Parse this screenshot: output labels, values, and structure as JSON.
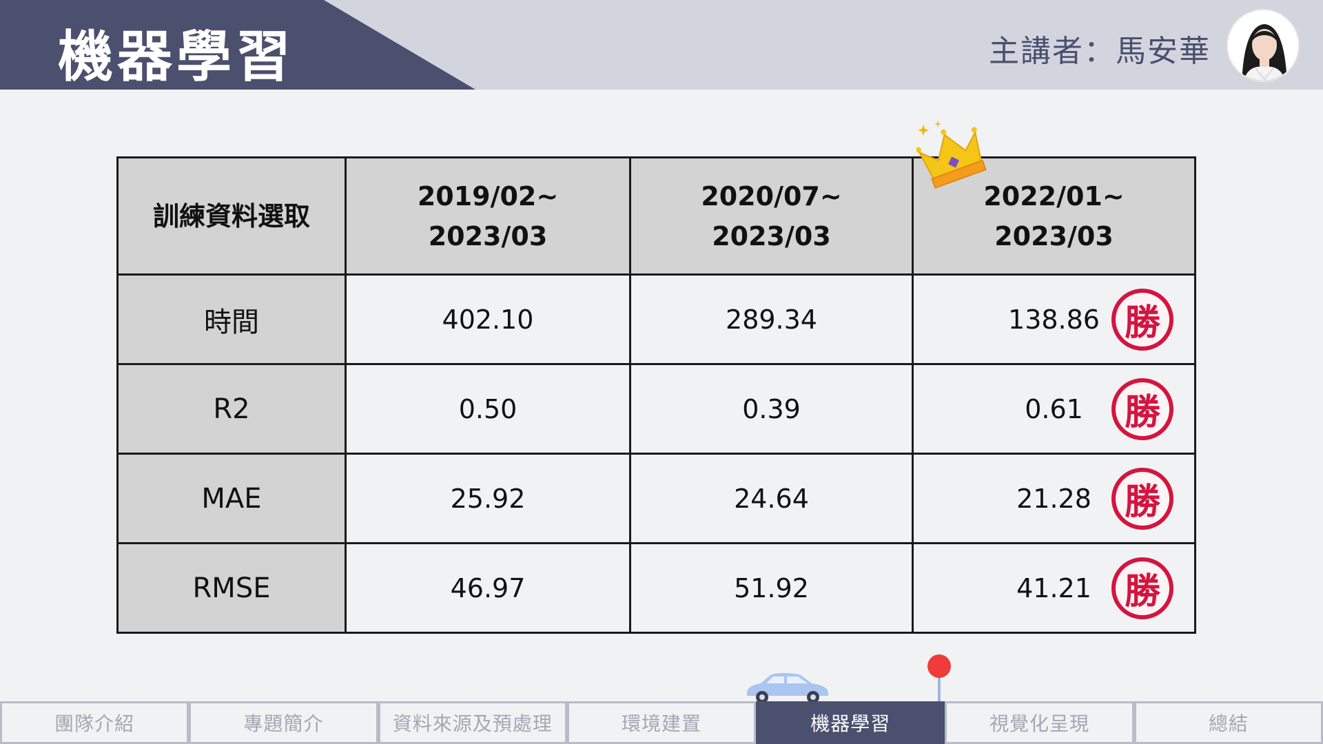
{
  "header": {
    "title": "機器學習",
    "speaker": "主講者：馬安華"
  },
  "table": {
    "header_label": "訓練資料選取",
    "columns": [
      {
        "line1": "2019/02~",
        "line2": "2023/03"
      },
      {
        "line1": "2020/07~",
        "line2": "2023/03"
      },
      {
        "line1": "2022/01~",
        "line2": "2023/03"
      }
    ],
    "rows": [
      {
        "label": "時間",
        "values": [
          "402.10",
          "289.34",
          "138.86"
        ]
      },
      {
        "label": "R2",
        "values": [
          "0.50",
          "0.39",
          "0.61"
        ]
      },
      {
        "label": "MAE",
        "values": [
          "25.92",
          "24.64",
          "21.28"
        ]
      },
      {
        "label": "RMSE",
        "values": [
          "46.97",
          "51.92",
          "41.21"
        ]
      }
    ],
    "win_stamp": "勝"
  },
  "nav": {
    "tabs": [
      "團隊介紹",
      "專題簡介",
      "資料來源及預處理",
      "環境建置",
      "機器學習",
      "視覺化呈現",
      "總結"
    ],
    "active_index": 4
  },
  "colors": {
    "header_dark": "#4b506f",
    "header_light": "#d2d5dd",
    "win_red": "#d3153f",
    "pin_red": "#ef3b3b"
  },
  "icons": [
    "crown-icon",
    "win-stamp-icon",
    "car-icon",
    "map-pin-icon",
    "speaker-avatar"
  ]
}
